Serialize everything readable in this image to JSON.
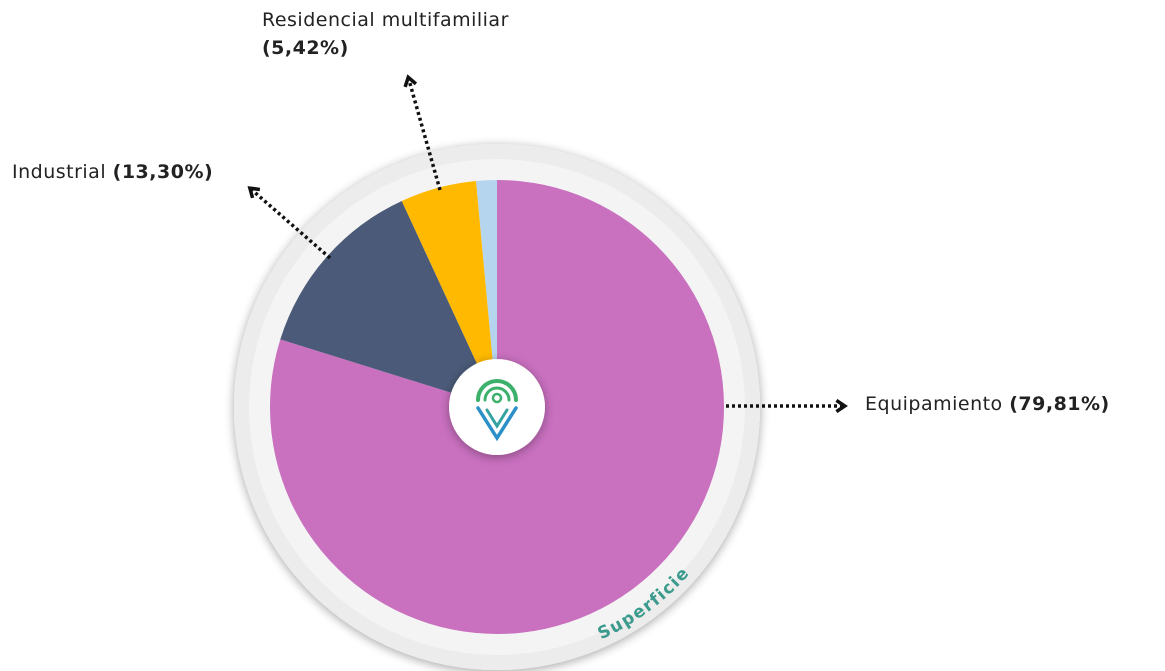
{
  "chart_data": {
    "type": "pie",
    "categories": [
      "Equipamiento",
      "Industrial",
      "Residencial multifamiliar",
      null
    ],
    "values": [
      79.81,
      13.3,
      5.42,
      1.47
    ],
    "value_labels": [
      "(79,81%)",
      "(13,30%)",
      "(5,42%)",
      null
    ],
    "colors": [
      "#c970bf",
      "#4a5a78",
      "#ffb900",
      "#b5d4ee"
    ],
    "annotation": "Superficie"
  }
}
